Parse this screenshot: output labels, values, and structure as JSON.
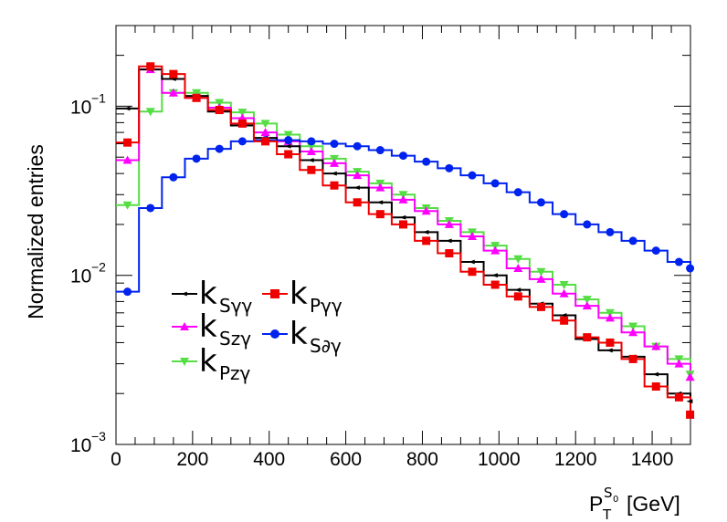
{
  "chart_data": {
    "type": "histogram",
    "title": "",
    "xlabel": {
      "base": "P",
      "sub": "T",
      "sup_base": "S",
      "sup_sub": "0",
      "unit": "[GeV]"
    },
    "ylabel": "Normalized entries",
    "x_scale": "linear",
    "y_scale": "log",
    "xlim": [
      0,
      1500
    ],
    "ylim": [
      0.001,
      0.3
    ],
    "bin_width": 60,
    "x_ticks": [
      0,
      200,
      400,
      600,
      800,
      1000,
      1200,
      1400
    ],
    "y_ticks": [
      {
        "value": 0.001,
        "base": "10",
        "exp": "−3"
      },
      {
        "value": 0.01,
        "base": "10",
        "exp": "−2"
      },
      {
        "value": 0.1,
        "base": "10",
        "exp": "−1"
      }
    ],
    "legend_position": "lower-left",
    "series": [
      {
        "name": "kSγγ",
        "main": "k",
        "sub": "Sγγ",
        "color": "#000000",
        "marker": "tri-left",
        "values": [
          0.097,
          0.165,
          0.145,
          0.115,
          0.093,
          0.077,
          0.065,
          0.058,
          0.048,
          0.04,
          0.033,
          0.027,
          0.022,
          0.018,
          0.016,
          0.012,
          0.01,
          0.0082,
          0.0068,
          0.0058,
          0.0042,
          0.0036,
          0.0033,
          0.0026,
          0.002,
          0.0018
        ]
      },
      {
        "name": "kSzγ",
        "main": "k",
        "sub": "Szγ",
        "color": "#ff00ff",
        "marker": "triangle-up",
        "values": [
          0.048,
          0.165,
          0.12,
          0.112,
          0.098,
          0.085,
          0.07,
          0.062,
          0.054,
          0.046,
          0.039,
          0.033,
          0.028,
          0.024,
          0.02,
          0.017,
          0.014,
          0.011,
          0.0095,
          0.0078,
          0.0066,
          0.0056,
          0.0046,
          0.0038,
          0.003,
          0.0025
        ]
      },
      {
        "name": "kPzγ",
        "main": "k",
        "sub": "Pzγ",
        "color": "#55dd44",
        "marker": "triangle-down",
        "values": [
          0.026,
          0.093,
          0.12,
          0.12,
          0.105,
          0.092,
          0.079,
          0.068,
          0.058,
          0.049,
          0.041,
          0.035,
          0.03,
          0.025,
          0.021,
          0.018,
          0.015,
          0.0125,
          0.0105,
          0.0088,
          0.0072,
          0.006,
          0.005,
          0.0038,
          0.0032,
          0.0026
        ]
      },
      {
        "name": "kPγγ",
        "main": "k",
        "sub": "Pγγ",
        "color": "#ee0000",
        "marker": "square",
        "values": [
          0.061,
          0.172,
          0.155,
          0.112,
          0.095,
          0.079,
          0.062,
          0.052,
          0.042,
          0.034,
          0.027,
          0.023,
          0.02,
          0.016,
          0.0135,
          0.0105,
          0.0088,
          0.0075,
          0.0065,
          0.0054,
          0.0043,
          0.004,
          0.0032,
          0.0022,
          0.0019,
          0.0015
        ]
      },
      {
        "name": "kS∂γ",
        "main": "k",
        "sub": "S∂γ",
        "color": "#0022ee",
        "marker": "circle",
        "values": [
          0.008,
          0.025,
          0.038,
          0.049,
          0.056,
          0.062,
          0.063,
          0.063,
          0.062,
          0.06,
          0.058,
          0.055,
          0.051,
          0.047,
          0.043,
          0.039,
          0.035,
          0.031,
          0.027,
          0.023,
          0.02,
          0.018,
          0.016,
          0.014,
          0.012,
          0.011
        ]
      }
    ]
  }
}
